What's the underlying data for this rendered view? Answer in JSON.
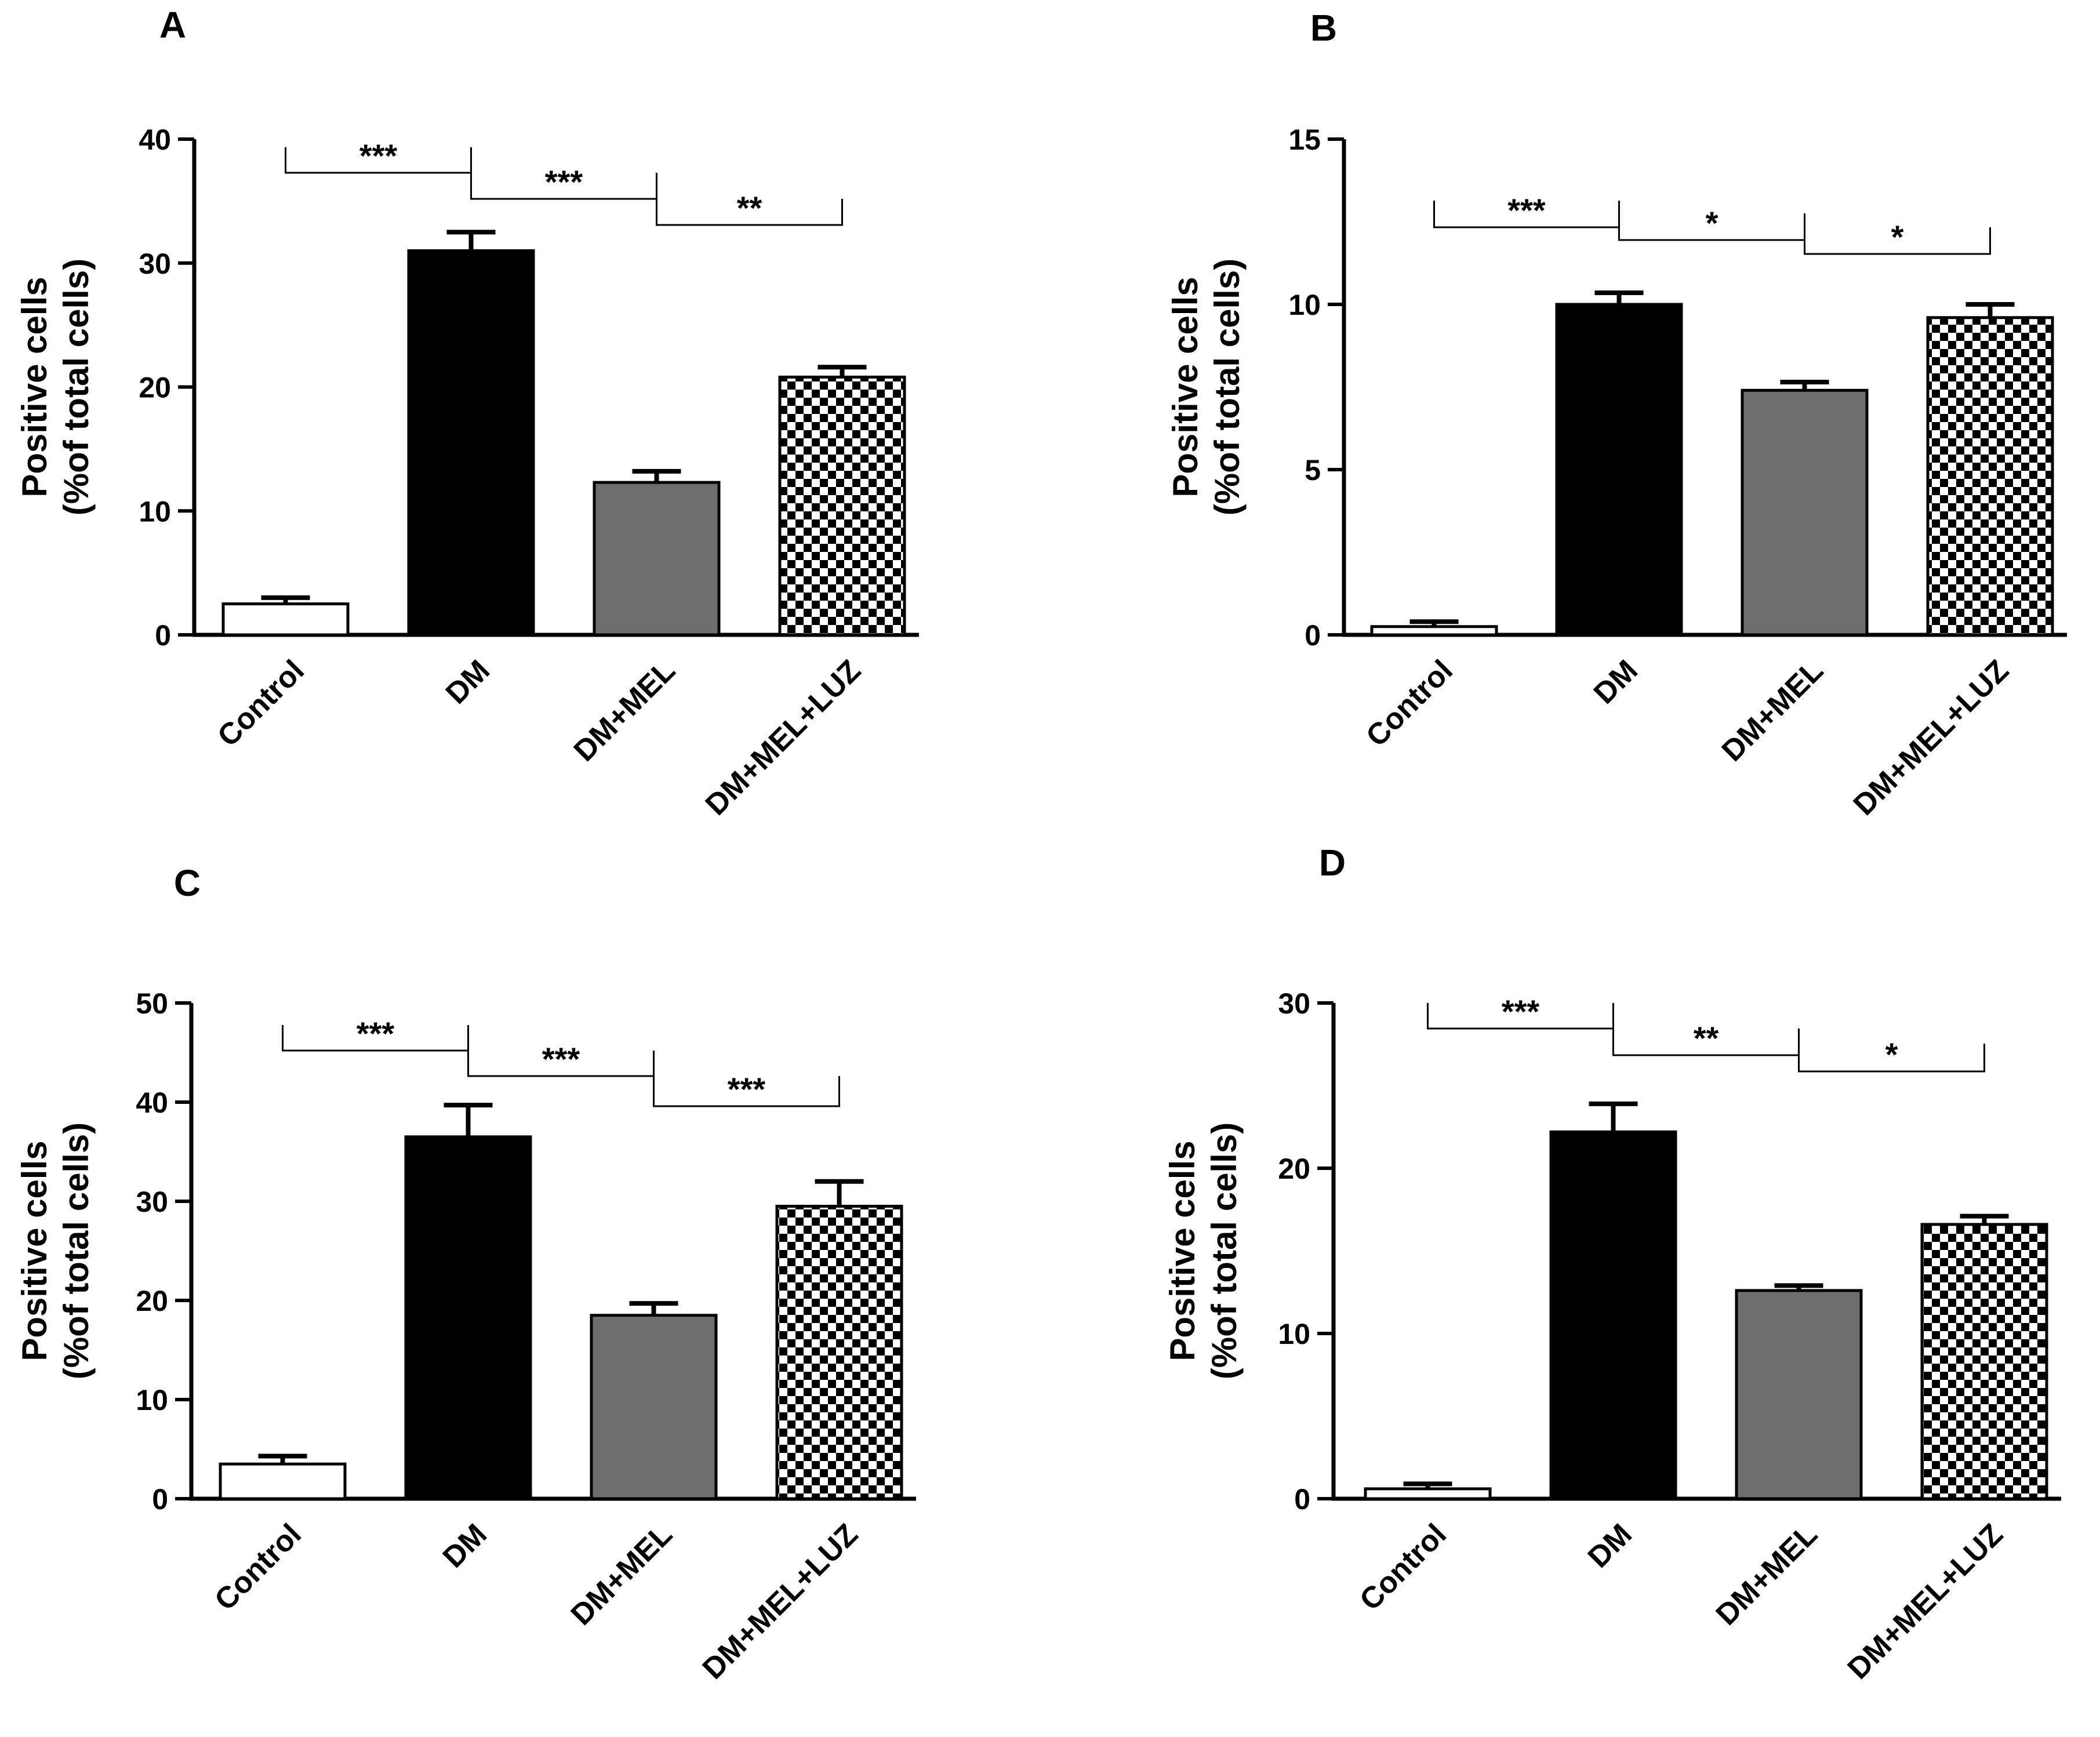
{
  "figure": {
    "categories": [
      "Control",
      "DM",
      "DM+MEL",
      "DM+MEL+LUZ"
    ],
    "ylabel_line1": "Positive cells",
    "ylabel_line2": "(%of total cells)",
    "bar_styles": [
      {
        "fill": "#ffffff",
        "pattern": "none"
      },
      {
        "fill": "#000000",
        "pattern": "none"
      },
      {
        "fill": "#6e6e6e",
        "pattern": "none"
      },
      {
        "fill": "#ffffff",
        "pattern": "checker"
      }
    ]
  },
  "chart_data": [
    {
      "type": "bar",
      "panel": "A",
      "categories": [
        "Control",
        "DM",
        "DM+MEL",
        "DM+MEL+LUZ"
      ],
      "values": [
        2.5,
        31.0,
        12.3,
        20.8
      ],
      "errors": [
        0.5,
        1.5,
        0.9,
        0.8
      ],
      "ylim": [
        0,
        40
      ],
      "yticks": [
        0,
        10,
        20,
        30,
        40
      ],
      "ylabel": "Positive cells (%of total cells)",
      "significance": [
        {
          "from": 0,
          "to": 1,
          "label": "***"
        },
        {
          "from": 1,
          "to": 2,
          "label": "***"
        },
        {
          "from": 2,
          "to": 3,
          "label": "**"
        }
      ]
    },
    {
      "type": "bar",
      "panel": "B",
      "categories": [
        "Control",
        "DM",
        "DM+MEL",
        "DM+MEL+LUZ"
      ],
      "values": [
        0.25,
        10.0,
        7.4,
        9.6
      ],
      "errors": [
        0.15,
        0.35,
        0.25,
        0.4
      ],
      "ylim": [
        0,
        15
      ],
      "yticks": [
        0,
        5,
        10,
        15
      ],
      "ylabel": "Positive cells (%of total cells)",
      "significance": [
        {
          "from": 0,
          "to": 1,
          "label": "***"
        },
        {
          "from": 1,
          "to": 2,
          "label": "*"
        },
        {
          "from": 2,
          "to": 3,
          "label": "*"
        }
      ]
    },
    {
      "type": "bar",
      "panel": "C",
      "categories": [
        "Control",
        "DM",
        "DM+MEL",
        "DM+MEL+LUZ"
      ],
      "values": [
        3.5,
        36.5,
        18.5,
        29.5
      ],
      "errors": [
        0.8,
        3.2,
        1.2,
        2.5
      ],
      "ylim": [
        0,
        50
      ],
      "yticks": [
        0,
        10,
        20,
        30,
        40,
        50
      ],
      "ylabel": "Positive cells (%of total cells)",
      "significance": [
        {
          "from": 0,
          "to": 1,
          "label": "***"
        },
        {
          "from": 1,
          "to": 2,
          "label": "***"
        },
        {
          "from": 2,
          "to": 3,
          "label": "***"
        }
      ]
    },
    {
      "type": "bar",
      "panel": "D",
      "categories": [
        "Control",
        "DM",
        "DM+MEL",
        "DM+MEL+LUZ"
      ],
      "values": [
        0.6,
        22.2,
        12.6,
        16.6
      ],
      "errors": [
        0.3,
        1.7,
        0.3,
        0.5
      ],
      "ylim": [
        0,
        30
      ],
      "yticks": [
        0,
        10,
        20,
        30
      ],
      "ylabel": "Positive cells (%of total cells)",
      "significance": [
        {
          "from": 0,
          "to": 1,
          "label": "***"
        },
        {
          "from": 1,
          "to": 2,
          "label": "**"
        },
        {
          "from": 2,
          "to": 3,
          "label": "*"
        }
      ]
    }
  ]
}
